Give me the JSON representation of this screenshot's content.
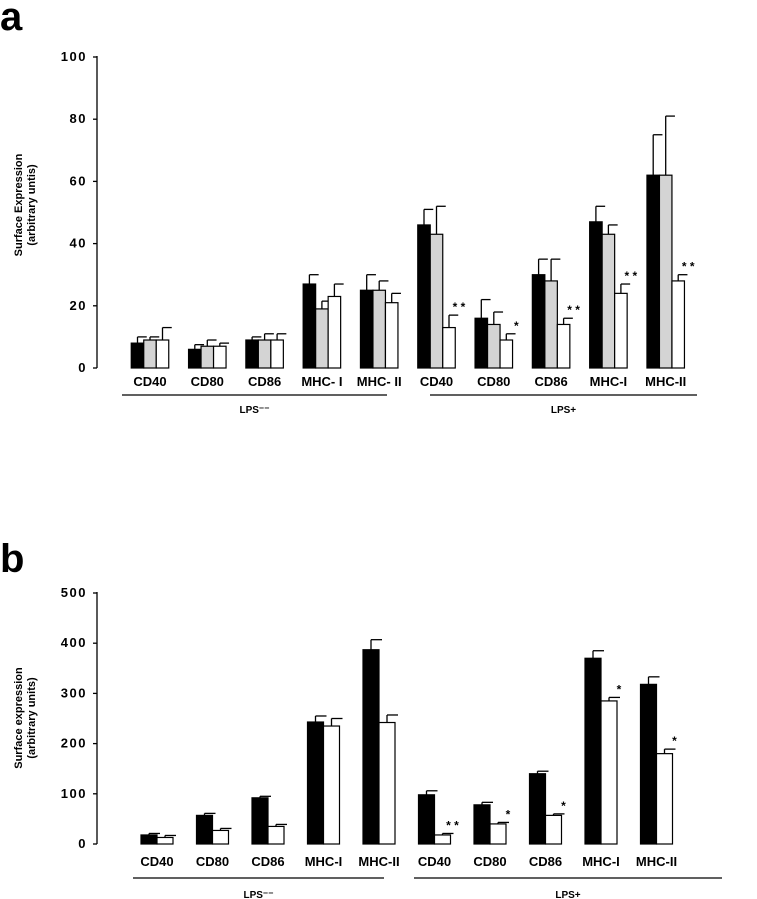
{
  "chart_data": [
    {
      "panel": "a",
      "type": "bar",
      "ylabel_line1": "Surface Expression",
      "ylabel_line2": "(arbitrary untis)",
      "ylim": [
        0,
        100
      ],
      "yticks": [
        "0",
        "20",
        "40",
        "60",
        "80",
        "100"
      ],
      "groups": [
        "LPS⁻⁻",
        "LPS+"
      ],
      "categories": [
        "CD40",
        "CD80",
        "CD86",
        "MHC- I",
        "MHC- II",
        "CD40",
        "CD80",
        "CD86",
        "MHC-I",
        "MHC-II"
      ],
      "series": [
        {
          "fill": "#000000",
          "values": [
            8,
            6,
            9,
            27,
            25,
            46,
            16,
            30,
            47,
            62
          ],
          "errors": [
            2,
            1.5,
            1,
            3,
            5,
            5,
            6,
            5,
            5,
            13
          ]
        },
        {
          "fill": "#d4d4d4",
          "values": [
            9,
            7,
            9,
            19,
            25,
            43,
            14,
            28,
            43,
            62
          ],
          "errors": [
            1,
            2,
            2,
            2.5,
            3,
            9,
            4,
            7,
            3,
            19
          ]
        },
        {
          "fill": "#ffffff",
          "values": [
            9,
            7,
            9,
            23,
            21,
            13,
            9,
            14,
            24,
            28
          ],
          "errors": [
            4,
            1,
            2,
            4,
            3,
            4,
            2,
            2,
            3,
            2
          ]
        }
      ],
      "annotations": [
        "",
        "",
        "",
        "",
        "",
        "* *",
        "*",
        "* *",
        "* *",
        "* *"
      ]
    },
    {
      "panel": "b",
      "type": "bar",
      "ylabel_line1": "Surface expression",
      "ylabel_line2": "(arbitrary units)",
      "ylim": [
        0,
        500
      ],
      "yticks": [
        "0",
        "100",
        "200",
        "300",
        "400",
        "500"
      ],
      "groups": [
        "LPS⁻⁻",
        "LPS+"
      ],
      "categories": [
        "CD40",
        "CD80",
        "CD86",
        "MHC-I",
        "MHC-II",
        "CD40",
        "CD80",
        "CD86",
        "MHC-I",
        "MHC-II"
      ],
      "series": [
        {
          "fill": "#000000",
          "values": [
            18,
            57,
            92,
            243,
            387,
            98,
            78,
            140,
            370,
            318
          ],
          "errors": [
            3,
            4,
            3,
            12,
            20,
            8,
            5,
            5,
            15,
            15
          ]
        },
        {
          "fill": "#ffffff",
          "values": [
            13,
            27,
            35,
            235,
            242,
            18,
            40,
            57,
            285,
            180
          ],
          "errors": [
            4,
            4,
            4,
            15,
            15,
            3,
            3,
            3,
            7,
            9
          ]
        }
      ],
      "annotations": [
        "",
        "",
        "",
        "",
        "",
        "* *",
        "*",
        "*",
        "*",
        "*"
      ]
    }
  ]
}
